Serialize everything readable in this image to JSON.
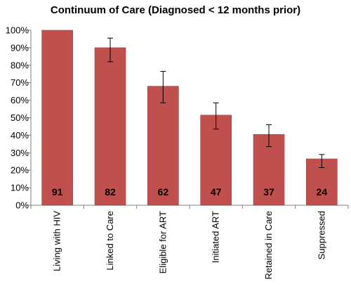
{
  "chart_data": {
    "type": "bar",
    "title": "Continuum of Care (Diagnosed < 12 months prior)",
    "categories": [
      "Living with HIV",
      "Linked to Care",
      "Eligible for ART",
      "Initiated ART",
      "Retained in Care",
      "Suppressed"
    ],
    "values": [
      100,
      90,
      68,
      51.5,
      40.5,
      26.5
    ],
    "error_low": [
      100,
      82,
      58.5,
      43.5,
      33.5,
      21.5
    ],
    "error_high": [
      100,
      95.5,
      76.5,
      58.5,
      46,
      29
    ],
    "data_labels": [
      "91",
      "82",
      "62",
      "47",
      "37",
      "24"
    ],
    "y_ticks": [
      "0%",
      "10%",
      "20%",
      "30%",
      "40%",
      "50%",
      "60%",
      "70%",
      "80%",
      "90%",
      "100%"
    ],
    "ylim": [
      0,
      100
    ],
    "y_unit": "%",
    "bar_color": "#c0504d",
    "bar_edge_color": "#a0403d",
    "grid": false,
    "legend": "none"
  }
}
